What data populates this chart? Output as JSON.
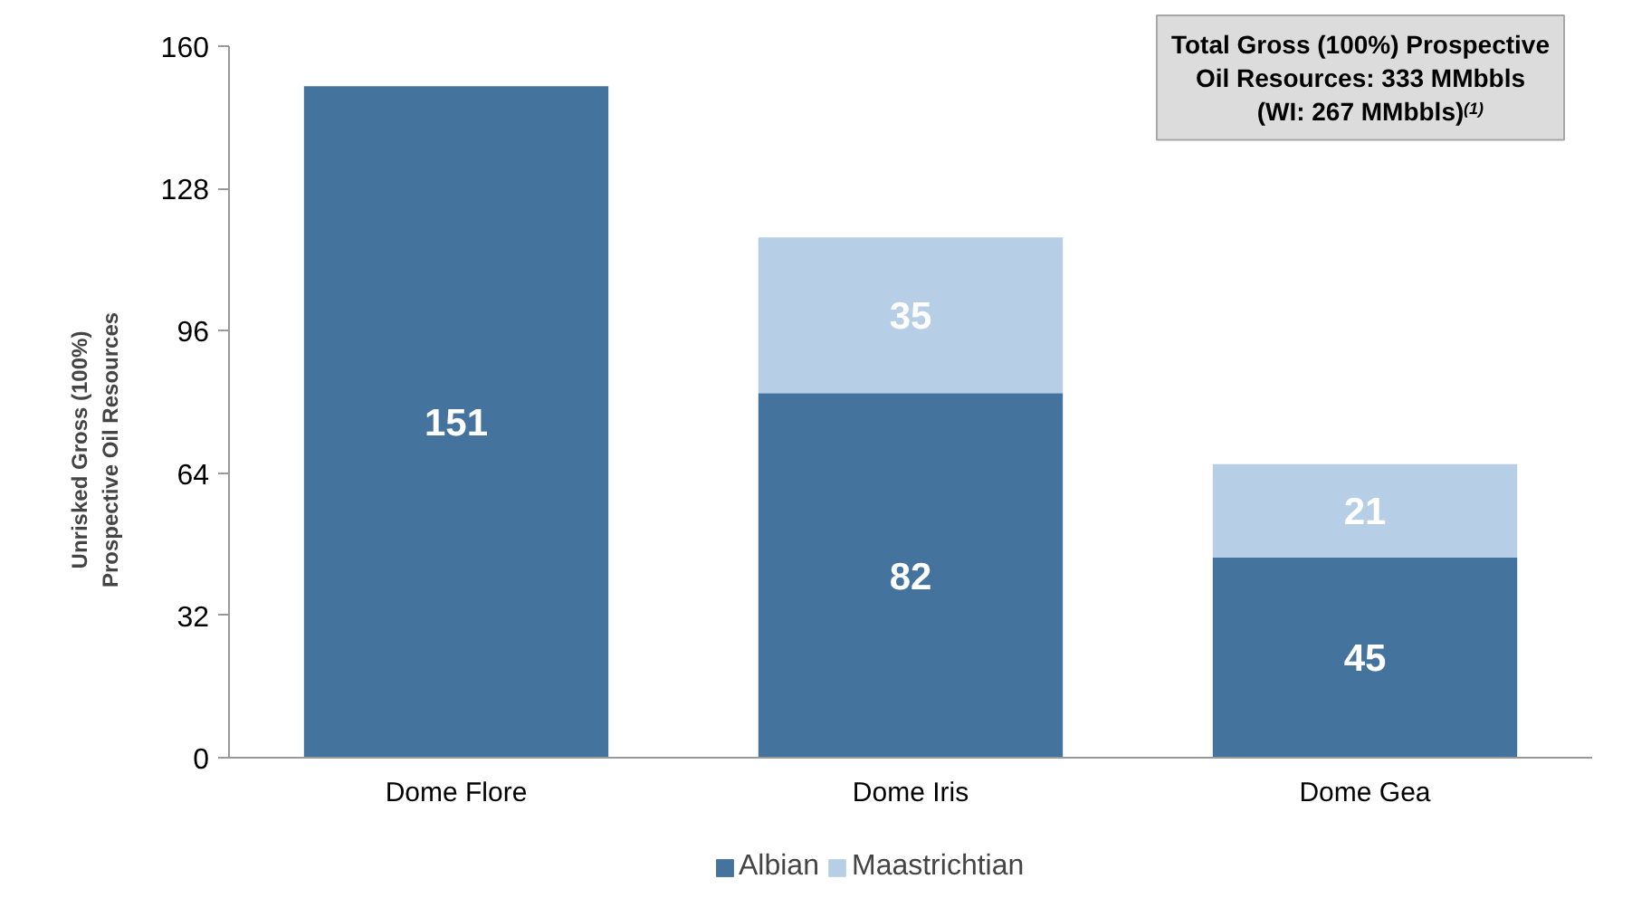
{
  "chart_data": {
    "type": "bar",
    "stacked": true,
    "categories": [
      "Dome Flore",
      "Dome Iris",
      "Dome Gea"
    ],
    "ylabel": "Unrisked Gross (100%)\nProspective Oil Resources",
    "series": [
      {
        "name": "Albian",
        "color": "#44749d",
        "values": [
          151,
          82,
          45
        ]
      },
      {
        "name": "Maastrichtian",
        "color": "#b7cfe6",
        "values": [
          null,
          35,
          21
        ]
      }
    ],
    "ylim": [
      0,
      160
    ],
    "yticks": [
      0,
      32,
      64,
      96,
      128,
      160
    ],
    "data_labels": true,
    "legend": "bottom",
    "grid": false,
    "annotations": [
      "Total Gross (100%) Prospective Oil Resources: 333 MMbbls (WI: 267 MMbbls)$^{(1)}$"
    ]
  }
}
